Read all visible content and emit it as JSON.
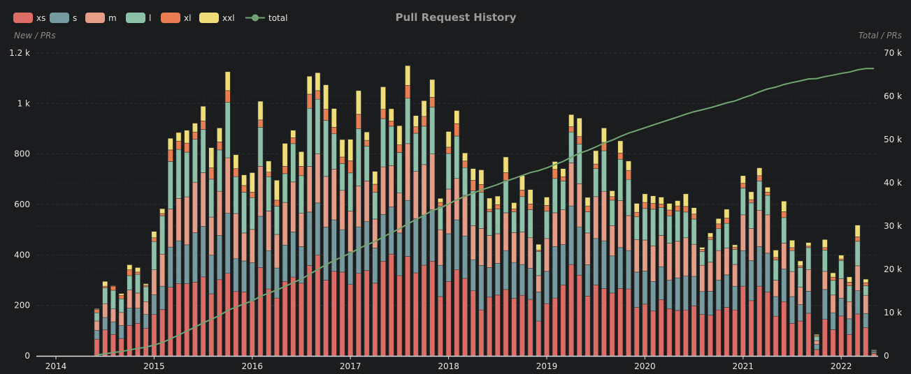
{
  "chart_data": {
    "type": "bar",
    "stacked": true,
    "title": "Pull Request History",
    "ylabel": "New / PRs",
    "y2label": "Total / PRs",
    "ylim": [
      0,
      1200
    ],
    "y2lim": [
      0,
      70000
    ],
    "y_ticks": [
      "0",
      "200",
      "400",
      "600",
      "800",
      "1 k",
      "1.2 k"
    ],
    "y2_ticks": [
      "0",
      "10 k",
      "20 k",
      "30 k",
      "40 k",
      "50 k",
      "60 k",
      "70 k"
    ],
    "x_ticks": [
      "2014",
      "2015",
      "2016",
      "2017",
      "2018",
      "2019",
      "2020",
      "2021",
      "2022"
    ],
    "grid": true,
    "legend_position": "top-left",
    "categories": [
      "2014-06",
      "2014-07",
      "2014-08",
      "2014-09",
      "2014-10",
      "2014-11",
      "2014-12",
      "2015-01",
      "2015-02",
      "2015-03",
      "2015-04",
      "2015-05",
      "2015-06",
      "2015-07",
      "2015-08",
      "2015-09",
      "2015-10",
      "2015-11",
      "2015-12",
      "2016-01",
      "2016-02",
      "2016-03",
      "2016-04",
      "2016-05",
      "2016-06",
      "2016-07",
      "2016-08",
      "2016-09",
      "2016-10",
      "2016-11",
      "2016-12",
      "2017-01",
      "2017-02",
      "2017-03",
      "2017-04",
      "2017-05",
      "2017-06",
      "2017-07",
      "2017-08",
      "2017-09",
      "2017-10",
      "2017-11",
      "2017-12",
      "2018-01",
      "2018-02",
      "2018-03",
      "2018-04",
      "2018-05",
      "2018-06",
      "2018-07",
      "2018-08",
      "2018-09",
      "2018-10",
      "2018-11",
      "2018-12",
      "2019-01",
      "2019-02",
      "2019-03",
      "2019-04",
      "2019-05",
      "2019-06",
      "2019-07",
      "2019-08",
      "2019-09",
      "2019-10",
      "2019-11",
      "2019-12",
      "2020-01",
      "2020-02",
      "2020-03",
      "2020-04",
      "2020-05",
      "2020-06",
      "2020-07",
      "2020-08",
      "2020-09",
      "2020-10",
      "2020-11",
      "2020-12",
      "2021-01",
      "2021-02",
      "2021-03",
      "2021-04",
      "2021-05",
      "2021-06",
      "2021-07",
      "2021-08",
      "2021-09",
      "2021-10",
      "2021-11",
      "2021-12",
      "2022-01",
      "2022-02",
      "2022-03",
      "2022-04",
      "2022-05"
    ],
    "series": [
      {
        "name": "xs",
        "color": "#dd6b66",
        "values": [
          66,
          103,
          85,
          69,
          120,
          129,
          109,
          164,
          184,
          272,
          286,
          286,
          292,
          313,
          246,
          302,
          327,
          255,
          253,
          217,
          350,
          265,
          229,
          295,
          312,
          288,
          358,
          399,
          300,
          335,
          332,
          283,
          327,
          338,
          288,
          375,
          403,
          318,
          394,
          329,
          359,
          375,
          235,
          295,
          341,
          307,
          258,
          182,
          233,
          241,
          263,
          228,
          240,
          224,
          138,
          207,
          229,
          281,
          362,
          320,
          237,
          281,
          267,
          249,
          267,
          265,
          192,
          205,
          178,
          223,
          186,
          180,
          182,
          198,
          164,
          161,
          182,
          192,
          182,
          276,
          219,
          276,
          253,
          157,
          215,
          129,
          138,
          169,
          25,
          145,
          104,
          158,
          85,
          166,
          112,
          10
        ]
      },
      {
        "name": "s",
        "color": "#759aa0",
        "values": [
          35,
          49,
          50,
          51,
          69,
          60,
          55,
          78,
          92,
          159,
          170,
          154,
          196,
          200,
          153,
          175,
          238,
          130,
          123,
          152,
          203,
          152,
          119,
          144,
          179,
          145,
          212,
          207,
          210,
          204,
          168,
          129,
          184,
          194,
          139,
          185,
          187,
          169,
          222,
          215,
          199,
          204,
          124,
          189,
          198,
          168,
          123,
          176,
          117,
          126,
          154,
          142,
          122,
          123,
          115,
          128,
          204,
          160,
          232,
          191,
          124,
          184,
          189,
          147,
          162,
          152,
          140,
          131,
          117,
          130,
          114,
          129,
          134,
          117,
          91,
          95,
          118,
          129,
          94,
          141,
          159,
          157,
          154,
          78,
          129,
          106,
          65,
          87,
          21,
          118,
          67,
          70,
          62,
          92,
          56,
          5
        ]
      },
      {
        "name": "m",
        "color": "#e69d87",
        "values": [
          37,
          55,
          51,
          52,
          72,
          60,
          51,
          99,
          127,
          151,
          168,
          190,
          200,
          213,
          151,
          175,
          220,
          179,
          111,
          132,
          198,
          157,
          133,
          169,
          198,
          132,
          181,
          194,
          201,
          201,
          156,
          162,
          162,
          161,
          115,
          189,
          164,
          158,
          225,
          187,
          200,
          221,
          141,
          177,
          164,
          161,
          135,
          147,
          127,
          117,
          150,
          118,
          129,
          121,
          65,
          130,
          134,
          138,
          171,
          171,
          126,
          166,
          196,
          120,
          186,
          139,
          129,
          123,
          141,
          124,
          147,
          145,
          152,
          127,
          104,
          115,
          117,
          106,
          86,
          142,
          127,
          143,
          152,
          65,
          103,
          99,
          69,
          85,
          14,
          72,
          70,
          78,
          68,
          99,
          72,
          3
        ]
      },
      {
        "name": "l",
        "color": "#8dc1a9",
        "values": [
          33,
          63,
          74,
          54,
          57,
          74,
          59,
          112,
          152,
          188,
          194,
          177,
          170,
          171,
          150,
          164,
          220,
          146,
          161,
          126,
          155,
          136,
          112,
          114,
          152,
          149,
          230,
          217,
          222,
          140,
          106,
          151,
          227,
          138,
          106,
          191,
          156,
          161,
          180,
          151,
          152,
          186,
          93,
          141,
          168,
          110,
          138,
          143,
          94,
          98,
          129,
          83,
          140,
          111,
          95,
          108,
          136,
          114,
          122,
          157,
          84,
          111,
          161,
          101,
          164,
          143,
          90,
          125,
          145,
          110,
          108,
          120,
          102,
          100,
          54,
          90,
          87,
          98,
          60,
          106,
          101,
          117,
          77,
          80,
          101,
          83,
          78,
          88,
          17,
          84,
          58,
          72,
          63,
          97,
          38,
          4
        ]
      },
      {
        "name": "xl",
        "color": "#ea7e53",
        "values": [
          13,
          6,
          16,
          14,
          23,
          9,
          6,
          15,
          9,
          46,
          33,
          36,
          29,
          34,
          45,
          32,
          46,
          32,
          27,
          22,
          29,
          18,
          24,
          29,
          23,
          37,
          56,
          34,
          44,
          26,
          26,
          48,
          57,
          23,
          32,
          37,
          21,
          30,
          51,
          26,
          39,
          39,
          15,
          25,
          49,
          26,
          42,
          31,
          10,
          17,
          30,
          11,
          26,
          23,
          6,
          23,
          36,
          17,
          21,
          30,
          23,
          18,
          33,
          14,
          25,
          36,
          18,
          24,
          23,
          15,
          23,
          20,
          22,
          20,
          9,
          9,
          19,
          21,
          9,
          19,
          13,
          21,
          13,
          10,
          23,
          12,
          7,
          6,
          4,
          10,
          13,
          6,
          14,
          18,
          12,
          1
        ]
      },
      {
        "name": "xxl",
        "color": "#eedd78",
        "values": [
          3,
          19,
          2,
          7,
          20,
          18,
          6,
          25,
          19,
          46,
          34,
          51,
          35,
          58,
          80,
          55,
          75,
          55,
          42,
          77,
          74,
          44,
          79,
          91,
          30,
          58,
          71,
          71,
          97,
          74,
          69,
          85,
          94,
          33,
          51,
          89,
          48,
          76,
          78,
          44,
          62,
          70,
          16,
          62,
          52,
          32,
          46,
          58,
          44,
          34,
          62,
          25,
          57,
          57,
          23,
          33,
          31,
          32,
          48,
          73,
          34,
          53,
          57,
          23,
          48,
          37,
          35,
          34,
          30,
          27,
          26,
          21,
          50,
          25,
          8,
          17,
          21,
          35,
          9,
          30,
          31,
          31,
          19,
          29,
          42,
          29,
          19,
          14,
          4,
          32,
          17,
          15,
          21,
          46,
          14,
          2
        ]
      }
    ],
    "line_series": {
      "name": "total",
      "color": "#73a373",
      "axis": "right",
      "values": [
        187,
        482,
        760,
        1007,
        1368,
        1718,
        2004,
        2497,
        3080,
        3942,
        4827,
        5721,
        6643,
        7632,
        8457,
        9360,
        10486,
        11283,
        12000,
        12726,
        13735,
        14507,
        15203,
        16045,
        16939,
        17748,
        18856,
        19978,
        21052,
        22032,
        22889,
        23747,
        24798,
        25685,
        26416,
        27482,
        28461,
        29373,
        30523,
        31475,
        32486,
        33581,
        34205,
        35094,
        36066,
        36870,
        37612,
        38349,
        38974,
        39607,
        40395,
        41002,
        41716,
        42375,
        42817,
        43446,
        44216,
        44958,
        45914,
        46856,
        47484,
        48297,
        49200,
        49854,
        50706,
        51478,
        52082,
        52724,
        53358,
        53987,
        54591,
        55206,
        55848,
        56435,
        56865,
        57352,
        57896,
        58477,
        58917,
        59631,
        60281,
        61026,
        61694,
        62113,
        62726,
        63184,
        63560,
        64009,
        64094,
        64555,
        64884,
        65283,
        65596,
        66114,
        66418,
        66443
      ]
    }
  }
}
